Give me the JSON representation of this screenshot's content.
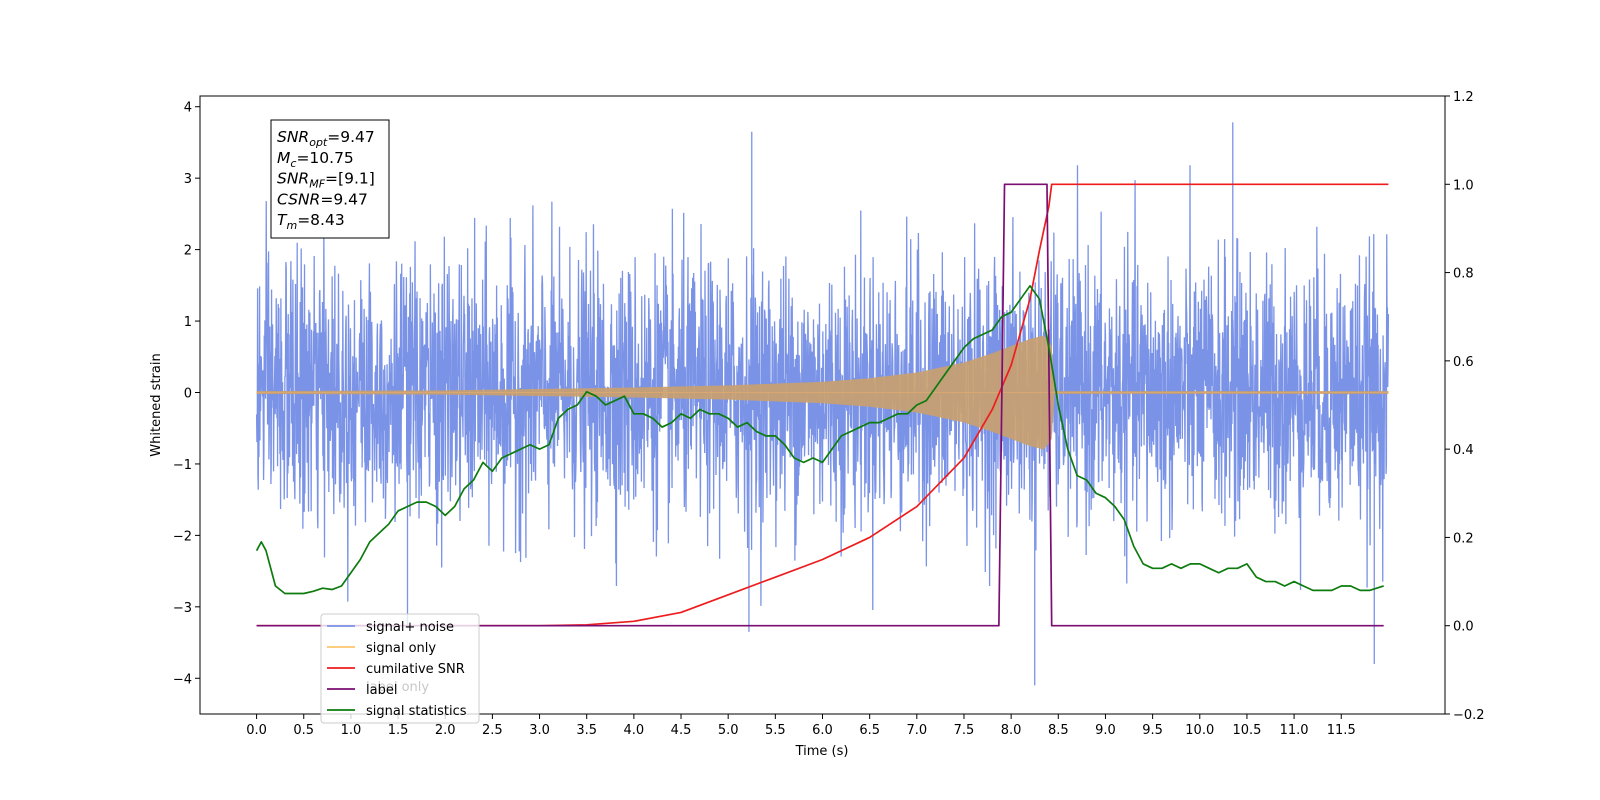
{
  "chart_data": {
    "type": "line",
    "xlabel": "Time (s)",
    "ylabel": "Whitened strain",
    "xlim": [
      -0.6,
      12.6
    ],
    "ylim": [
      -4.5,
      4.15
    ],
    "y2lim": [
      -0.2,
      1.2
    ],
    "x_ticks": [
      0.0,
      0.5,
      1.0,
      1.5,
      2.0,
      2.5,
      3.0,
      3.5,
      4.0,
      4.5,
      5.0,
      5.5,
      6.0,
      6.5,
      7.0,
      7.5,
      8.0,
      8.5,
      9.0,
      9.5,
      10.0,
      10.5,
      11.0,
      11.5
    ],
    "x_tick_labels": [
      "0.0",
      "0.5",
      "1.0",
      "1.5",
      "2.0",
      "2.5",
      "3.0",
      "3.5",
      "4.0",
      "4.5",
      "5.0",
      "5.5",
      "6.0",
      "6.5",
      "7.0",
      "7.5",
      "8.0",
      "8.5",
      "9.0",
      "9.5",
      "10.0",
      "10.5",
      "11.0",
      "11.5"
    ],
    "y_ticks": [
      -4,
      -3,
      -2,
      -1,
      0,
      1,
      2,
      3,
      4
    ],
    "y_tick_labels": [
      "−4",
      "−3",
      "−2",
      "−1",
      "0",
      "1",
      "2",
      "3",
      "4"
    ],
    "y2_ticks": [
      -0.2,
      0.0,
      0.2,
      0.4,
      0.6,
      0.8,
      1.0,
      1.2
    ],
    "y2_tick_labels": [
      "−0.2",
      "0.0",
      "0.2",
      "0.4",
      "0.6",
      "0.8",
      "1.0",
      "1.2"
    ],
    "legend_placement": "lower-left",
    "legend_entries": [
      {
        "label": "signal+ noise",
        "color": "#7a93e7"
      },
      {
        "label": "signal only",
        "color": "#ffc66e"
      },
      {
        "label": "cumilative SNR",
        "color": "#ee1c1c"
      },
      {
        "label": "label",
        "color": "#7b0d73"
      },
      {
        "label": "signal statistics",
        "color": "#0d7b0d"
      }
    ],
    "hidden_legend_text": [
      "label only"
    ],
    "annotation_box": {
      "lines": [
        {
          "base": "SNR",
          "sub": "opt",
          "value": "=9.47"
        },
        {
          "base": "M",
          "sub": "c",
          "value": "=10.75"
        },
        {
          "base": "SNR",
          "sub": "MF",
          "value": "=[9.1]"
        },
        {
          "base": "CSNR",
          "sub": "",
          "value": "=9.47"
        },
        {
          "base": "T",
          "sub": "m",
          "value": "=8.43"
        }
      ]
    },
    "series": [
      {
        "name": "signal+ noise",
        "axis": "left",
        "color": "#7a93e7",
        "style": "noise",
        "x_range": [
          0.0,
          12.0
        ],
        "sigma": 0.9,
        "y_min": -4.1,
        "y_max": 3.78,
        "spikes": [
          [
            5.25,
            3.65
          ],
          [
            10.35,
            3.78
          ],
          [
            8.25,
            -4.1
          ],
          [
            11.85,
            -3.8
          ],
          [
            5.22,
            -3.35
          ],
          [
            1.6,
            -3.3
          ]
        ]
      },
      {
        "name": "signal only",
        "axis": "left",
        "color": "#c8a070",
        "style": "chirp-envelope",
        "envelope_x": [
          0.0,
          2.0,
          3.0,
          4.0,
          5.0,
          6.0,
          6.5,
          7.0,
          7.5,
          7.8,
          8.0,
          8.2,
          8.35,
          8.43,
          8.45,
          12.0
        ],
        "envelope_amp": [
          0.02,
          0.03,
          0.05,
          0.07,
          0.1,
          0.15,
          0.2,
          0.28,
          0.42,
          0.55,
          0.65,
          0.75,
          0.8,
          0.65,
          0.02,
          0.02
        ]
      },
      {
        "name": "cumilative SNR",
        "axis": "right",
        "color": "#ee1c1c",
        "x": [
          0.0,
          3.0,
          3.5,
          4.0,
          4.5,
          5.0,
          5.5,
          6.0,
          6.5,
          7.0,
          7.5,
          7.8,
          8.0,
          8.2,
          8.3,
          8.4,
          8.43,
          12.0
        ],
        "values": [
          0.0,
          0.0,
          0.002,
          0.01,
          0.03,
          0.07,
          0.11,
          0.15,
          0.2,
          0.27,
          0.38,
          0.49,
          0.59,
          0.74,
          0.85,
          0.95,
          1.0,
          1.0
        ]
      },
      {
        "name": "label",
        "axis": "right",
        "color": "#7b0d73",
        "x": [
          0.0,
          7.87,
          7.93,
          8.38,
          8.43,
          11.95
        ],
        "values": [
          0.0,
          0.0,
          1.0,
          1.0,
          0.0,
          0.0
        ]
      },
      {
        "name": "signal statistics",
        "axis": "right",
        "color": "#0d7b0d",
        "x": [
          0.0,
          0.05,
          0.1,
          0.2,
          0.3,
          0.4,
          0.5,
          0.6,
          0.7,
          0.8,
          0.9,
          1.0,
          1.1,
          1.2,
          1.3,
          1.4,
          1.5,
          1.6,
          1.7,
          1.8,
          1.9,
          2.0,
          2.1,
          2.2,
          2.3,
          2.4,
          2.5,
          2.6,
          2.7,
          2.8,
          2.9,
          3.0,
          3.1,
          3.2,
          3.3,
          3.4,
          3.5,
          3.6,
          3.7,
          3.8,
          3.9,
          4.0,
          4.1,
          4.2,
          4.3,
          4.4,
          4.5,
          4.6,
          4.7,
          4.8,
          4.9,
          5.0,
          5.1,
          5.2,
          5.3,
          5.4,
          5.5,
          5.6,
          5.7,
          5.8,
          5.9,
          6.0,
          6.1,
          6.2,
          6.3,
          6.4,
          6.5,
          6.6,
          6.7,
          6.8,
          6.9,
          7.0,
          7.1,
          7.2,
          7.3,
          7.4,
          7.5,
          7.6,
          7.7,
          7.8,
          7.9,
          8.0,
          8.1,
          8.2,
          8.3,
          8.4,
          8.5,
          8.6,
          8.7,
          8.8,
          8.9,
          9.0,
          9.1,
          9.2,
          9.3,
          9.4,
          9.5,
          9.6,
          9.7,
          9.8,
          9.9,
          10.0,
          10.1,
          10.2,
          10.3,
          10.4,
          10.5,
          10.6,
          10.7,
          10.8,
          10.9,
          11.0,
          11.1,
          11.2,
          11.3,
          11.4,
          11.5,
          11.6,
          11.7,
          11.8,
          11.95
        ],
        "values": [
          0.17,
          0.19,
          0.17,
          0.09,
          0.073,
          0.073,
          0.073,
          0.078,
          0.085,
          0.082,
          0.09,
          0.12,
          0.15,
          0.19,
          0.21,
          0.23,
          0.26,
          0.27,
          0.28,
          0.28,
          0.27,
          0.25,
          0.27,
          0.31,
          0.33,
          0.37,
          0.35,
          0.38,
          0.39,
          0.4,
          0.41,
          0.4,
          0.41,
          0.47,
          0.49,
          0.5,
          0.53,
          0.52,
          0.5,
          0.51,
          0.52,
          0.48,
          0.48,
          0.47,
          0.45,
          0.46,
          0.48,
          0.47,
          0.49,
          0.48,
          0.48,
          0.47,
          0.45,
          0.46,
          0.44,
          0.43,
          0.43,
          0.41,
          0.38,
          0.37,
          0.38,
          0.37,
          0.4,
          0.43,
          0.44,
          0.45,
          0.46,
          0.46,
          0.47,
          0.48,
          0.48,
          0.5,
          0.51,
          0.54,
          0.57,
          0.6,
          0.63,
          0.65,
          0.66,
          0.67,
          0.7,
          0.71,
          0.74,
          0.77,
          0.74,
          0.63,
          0.5,
          0.4,
          0.34,
          0.33,
          0.3,
          0.29,
          0.27,
          0.24,
          0.18,
          0.14,
          0.13,
          0.13,
          0.14,
          0.13,
          0.14,
          0.14,
          0.13,
          0.12,
          0.13,
          0.13,
          0.14,
          0.11,
          0.1,
          0.1,
          0.09,
          0.1,
          0.09,
          0.08,
          0.08,
          0.08,
          0.09,
          0.09,
          0.08,
          0.08,
          0.09
        ]
      }
    ]
  }
}
